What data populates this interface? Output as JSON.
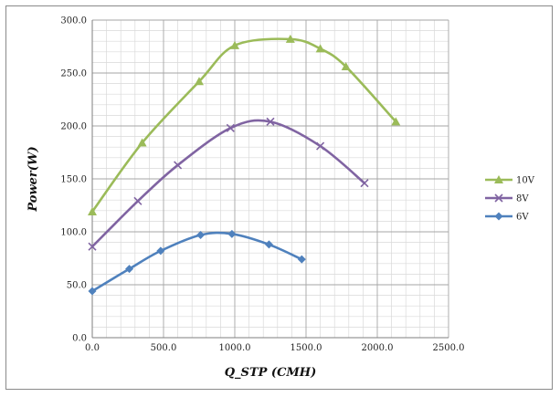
{
  "chart_data": {
    "type": "line",
    "xlabel": "Q_STP (CMH)",
    "ylabel": "Power(W)",
    "xlim": [
      0,
      2500
    ],
    "ylim": [
      0,
      300
    ],
    "x_ticks": [
      "0.0",
      "500.0",
      "1000.0",
      "1500.0",
      "2000.0",
      "2500.0"
    ],
    "y_ticks": [
      "0.0",
      "50.0",
      "100.0",
      "150.0",
      "200.0",
      "250.0",
      "300.0"
    ],
    "grid": true,
    "legend_position": "right",
    "series": [
      {
        "name": "10V",
        "color": "#9bbb59",
        "marker": "triangle",
        "points": [
          [
            0,
            119
          ],
          [
            350,
            184
          ],
          [
            750,
            242
          ],
          [
            1000,
            276
          ],
          [
            1390,
            282
          ],
          [
            1600,
            273
          ],
          [
            1780,
            256
          ],
          [
            2130,
            204
          ]
        ]
      },
      {
        "name": "8V",
        "color": "#8064a2",
        "marker": "x",
        "points": [
          [
            0,
            86
          ],
          [
            320,
            129
          ],
          [
            600,
            163
          ],
          [
            970,
            198
          ],
          [
            1250,
            204
          ],
          [
            1600,
            181
          ],
          [
            1910,
            146
          ]
        ]
      },
      {
        "name": "6V",
        "color": "#4f81bd",
        "marker": "diamond",
        "points": [
          [
            0,
            44
          ],
          [
            260,
            65
          ],
          [
            480,
            82
          ],
          [
            760,
            97
          ],
          [
            980,
            98
          ],
          [
            1240,
            88
          ],
          [
            1470,
            74
          ]
        ]
      }
    ]
  }
}
